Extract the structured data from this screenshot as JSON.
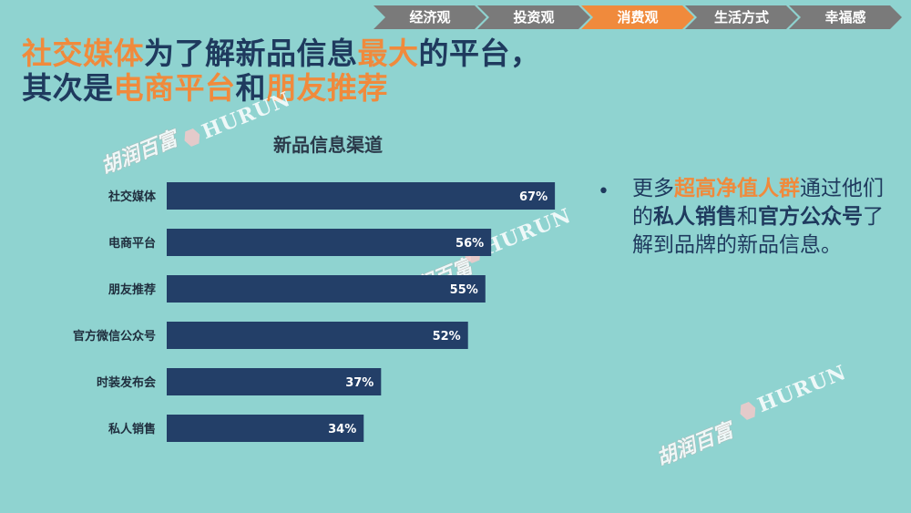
{
  "nav": {
    "items": [
      {
        "label": "经济观",
        "active": false
      },
      {
        "label": "投资观",
        "active": false
      },
      {
        "label": "消费观",
        "active": true
      },
      {
        "label": "生活方式",
        "active": false
      },
      {
        "label": "幸福感",
        "active": false
      }
    ]
  },
  "headline": {
    "line1": [
      {
        "text": "社交媒体",
        "hl": true
      },
      {
        "text": "为了解新品信息",
        "hl": false
      },
      {
        "text": "最大",
        "hl": true
      },
      {
        "text": "的平台，",
        "hl": false
      }
    ],
    "line2": [
      {
        "text": "其次是",
        "hl": false
      },
      {
        "text": "电商平台",
        "hl": true
      },
      {
        "text": "和",
        "hl": false
      },
      {
        "text": "朋友推荐",
        "hl": true
      }
    ]
  },
  "chart_data": {
    "type": "bar",
    "orientation": "horizontal",
    "title": "新品信息渠道",
    "categories": [
      "社交媒体",
      "电商平台",
      "朋友推荐",
      "官方微信公众号",
      "时装发布会",
      "私人销售"
    ],
    "values": [
      67,
      56,
      55,
      52,
      37,
      34
    ],
    "value_labels": [
      "67%",
      "56%",
      "55%",
      "52%",
      "37%",
      "34%"
    ],
    "xlim": [
      0,
      100
    ],
    "grid": false,
    "bar_color": "#233f68"
  },
  "bullet": {
    "segments": [
      {
        "text": "更多",
        "style": "nm"
      },
      {
        "text": "超高净值人群",
        "style": "hl"
      },
      {
        "text": "通过他们的",
        "style": "nm"
      },
      {
        "text": "私人销售",
        "style": "em"
      },
      {
        "text": "和",
        "style": "nm"
      },
      {
        "text": "官方公众号",
        "style": "em"
      },
      {
        "text": "了解到品牌的新品信息。",
        "style": "nm"
      }
    ]
  },
  "watermark": {
    "cn": "胡润百富",
    "en": "HURUN"
  },
  "colors": {
    "background": "#8fd3d0",
    "accent": "#f08a3c",
    "navy": "#1f3a5e",
    "nav_inactive": "#7a7a7a"
  }
}
